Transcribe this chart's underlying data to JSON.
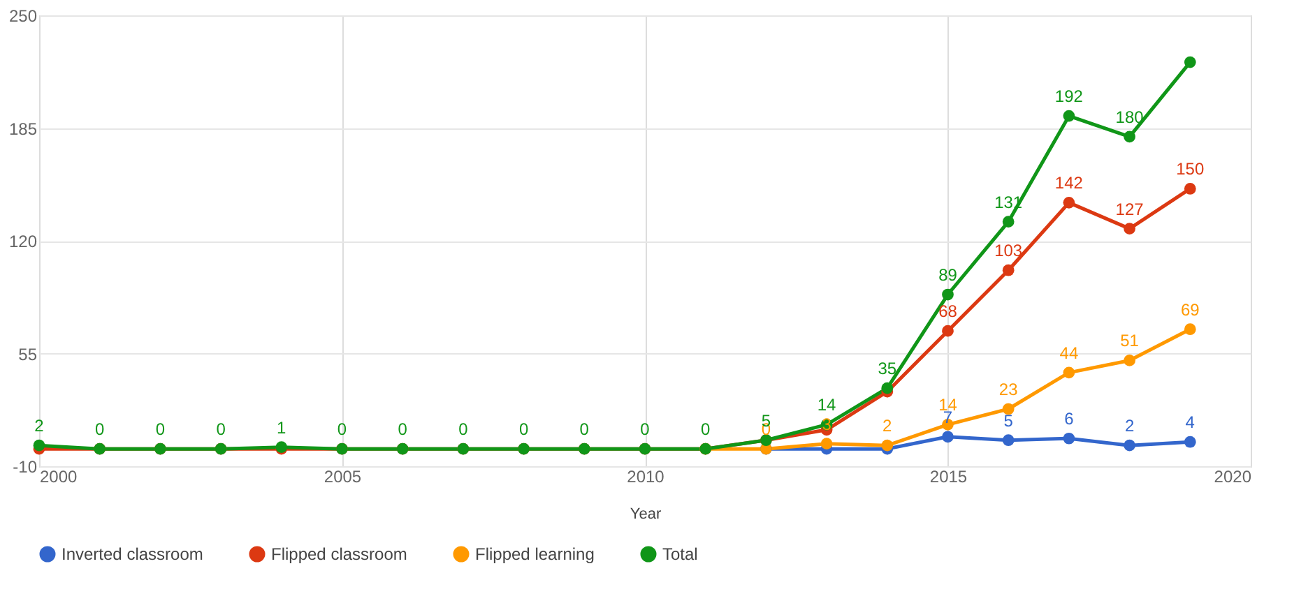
{
  "chart_data": {
    "type": "line",
    "xlabel": "Year",
    "x": [
      2000,
      2001,
      2002,
      2003,
      2004,
      2005,
      2006,
      2007,
      2008,
      2009,
      2010,
      2011,
      2012,
      2013,
      2014,
      2015,
      2016,
      2017,
      2018,
      2019
    ],
    "series": [
      {
        "name": "Inverted classroom",
        "color": "#3366cc",
        "values": [
          null,
          null,
          null,
          null,
          null,
          null,
          null,
          null,
          null,
          null,
          null,
          null,
          0,
          0,
          0,
          7,
          5,
          6,
          2,
          4
        ],
        "value_labels": [
          null,
          null,
          null,
          null,
          null,
          null,
          null,
          null,
          null,
          null,
          null,
          null,
          null,
          null,
          null,
          "7",
          "5",
          "6",
          "2",
          "4"
        ]
      },
      {
        "name": "Flipped classroom",
        "color": "#dc3912",
        "values": [
          0,
          0,
          0,
          0,
          0,
          0,
          0,
          0,
          0,
          0,
          0,
          0,
          5,
          11,
          33,
          68,
          103,
          142,
          127,
          150
        ],
        "value_labels": [
          null,
          null,
          null,
          null,
          null,
          null,
          null,
          null,
          null,
          null,
          null,
          null,
          null,
          null,
          null,
          "68",
          "103",
          "142",
          "127",
          "150"
        ]
      },
      {
        "name": "Flipped learning",
        "color": "#ff9900",
        "values": [
          null,
          null,
          null,
          null,
          null,
          null,
          null,
          null,
          null,
          null,
          null,
          0,
          0,
          3,
          2,
          14,
          23,
          44,
          51,
          69
        ],
        "value_labels": [
          null,
          null,
          null,
          null,
          null,
          null,
          null,
          null,
          null,
          null,
          null,
          null,
          "0",
          "3",
          "2",
          "14",
          "23",
          "44",
          "51",
          "69"
        ]
      },
      {
        "name": "Total",
        "color": "#109618",
        "values": [
          2,
          0,
          0,
          0,
          1,
          0,
          0,
          0,
          0,
          0,
          0,
          0,
          5,
          14,
          35,
          89,
          131,
          192,
          180,
          223
        ],
        "value_labels": [
          "2",
          "0",
          "0",
          "0",
          "1",
          "0",
          "0",
          "0",
          "0",
          "0",
          "0",
          "0",
          "5",
          "14",
          "35",
          "89",
          "131",
          "192",
          "180",
          null
        ]
      }
    ],
    "xlim": [
      2000,
      2020
    ],
    "xticks": [
      2000,
      2005,
      2010,
      2015,
      2020
    ],
    "ylim": [
      -10,
      250
    ],
    "yticks": [
      -10,
      55,
      120,
      185,
      250
    ],
    "grid": true,
    "legend": "bottom",
    "marker": "circle",
    "line_style": "solid"
  }
}
